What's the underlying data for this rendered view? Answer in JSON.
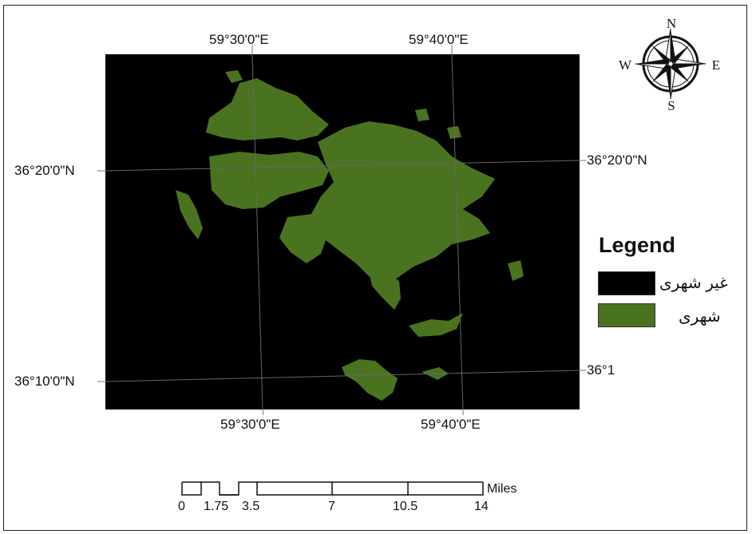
{
  "coordinates": {
    "top": [
      "59°30'0\"E",
      "59°40'0\"E"
    ],
    "bottom": [
      "59°30'0\"E",
      "59°40'0\"E"
    ],
    "left": [
      "36°20'0\"N",
      "36°10'0\"N"
    ],
    "right": [
      "36°20'0\"N",
      "36°1"
    ]
  },
  "north_arrow": {
    "n": "N",
    "s": "S",
    "e": "E",
    "w": "W"
  },
  "legend": {
    "title": "Legend",
    "items": [
      {
        "label": "غیر شهری",
        "color": "#000000"
      },
      {
        "label": "شهری",
        "color": "#4a7320"
      }
    ]
  },
  "scale_bar": {
    "unit": "Miles",
    "ticks": [
      "0",
      "1.75",
      "3.5",
      "7",
      "10.5",
      "14"
    ]
  },
  "colors": {
    "background": "#000000",
    "urban": "#4a7320"
  }
}
